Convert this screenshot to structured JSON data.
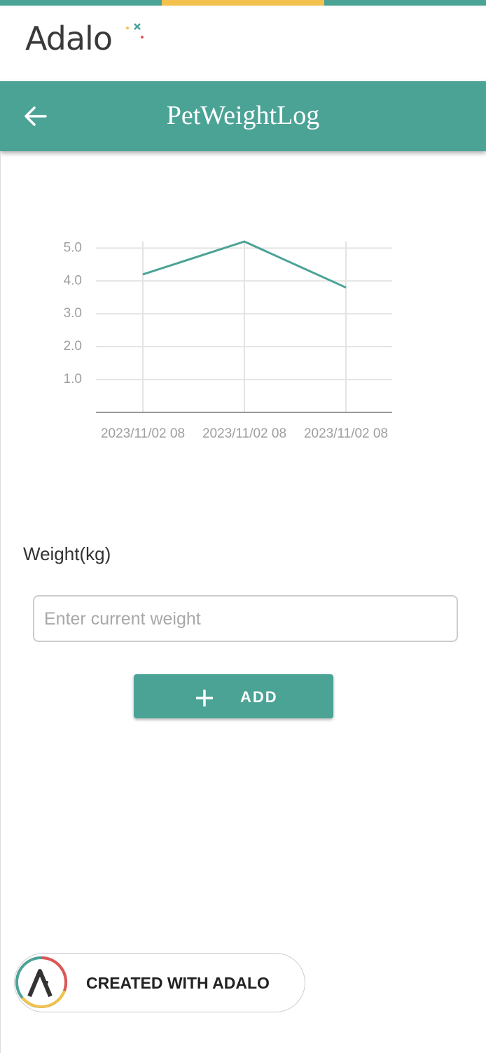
{
  "header": {
    "logo": "Adalo"
  },
  "app_bar": {
    "title": "PetWeightLog"
  },
  "chart_data": {
    "type": "line",
    "categories": [
      "2023/11/02 08",
      "2023/11/02 08",
      "2023/11/02 08"
    ],
    "values": [
      4.2,
      5.2,
      3.8
    ],
    "color": "#4ba396",
    "ylim": [
      0,
      5.2
    ],
    "yticks": [
      {
        "value": 1,
        "label": "1.0"
      },
      {
        "value": 2,
        "label": "2.0"
      },
      {
        "value": 3,
        "label": "3.0"
      },
      {
        "value": 4,
        "label": "4.0"
      },
      {
        "value": 5,
        "label": "5.0"
      }
    ],
    "grid": true
  },
  "form": {
    "label": "Weight(kg)",
    "placeholder": "Enter current weight",
    "button": "ADD"
  },
  "badge": {
    "text": "CREATED WITH ADALO"
  }
}
